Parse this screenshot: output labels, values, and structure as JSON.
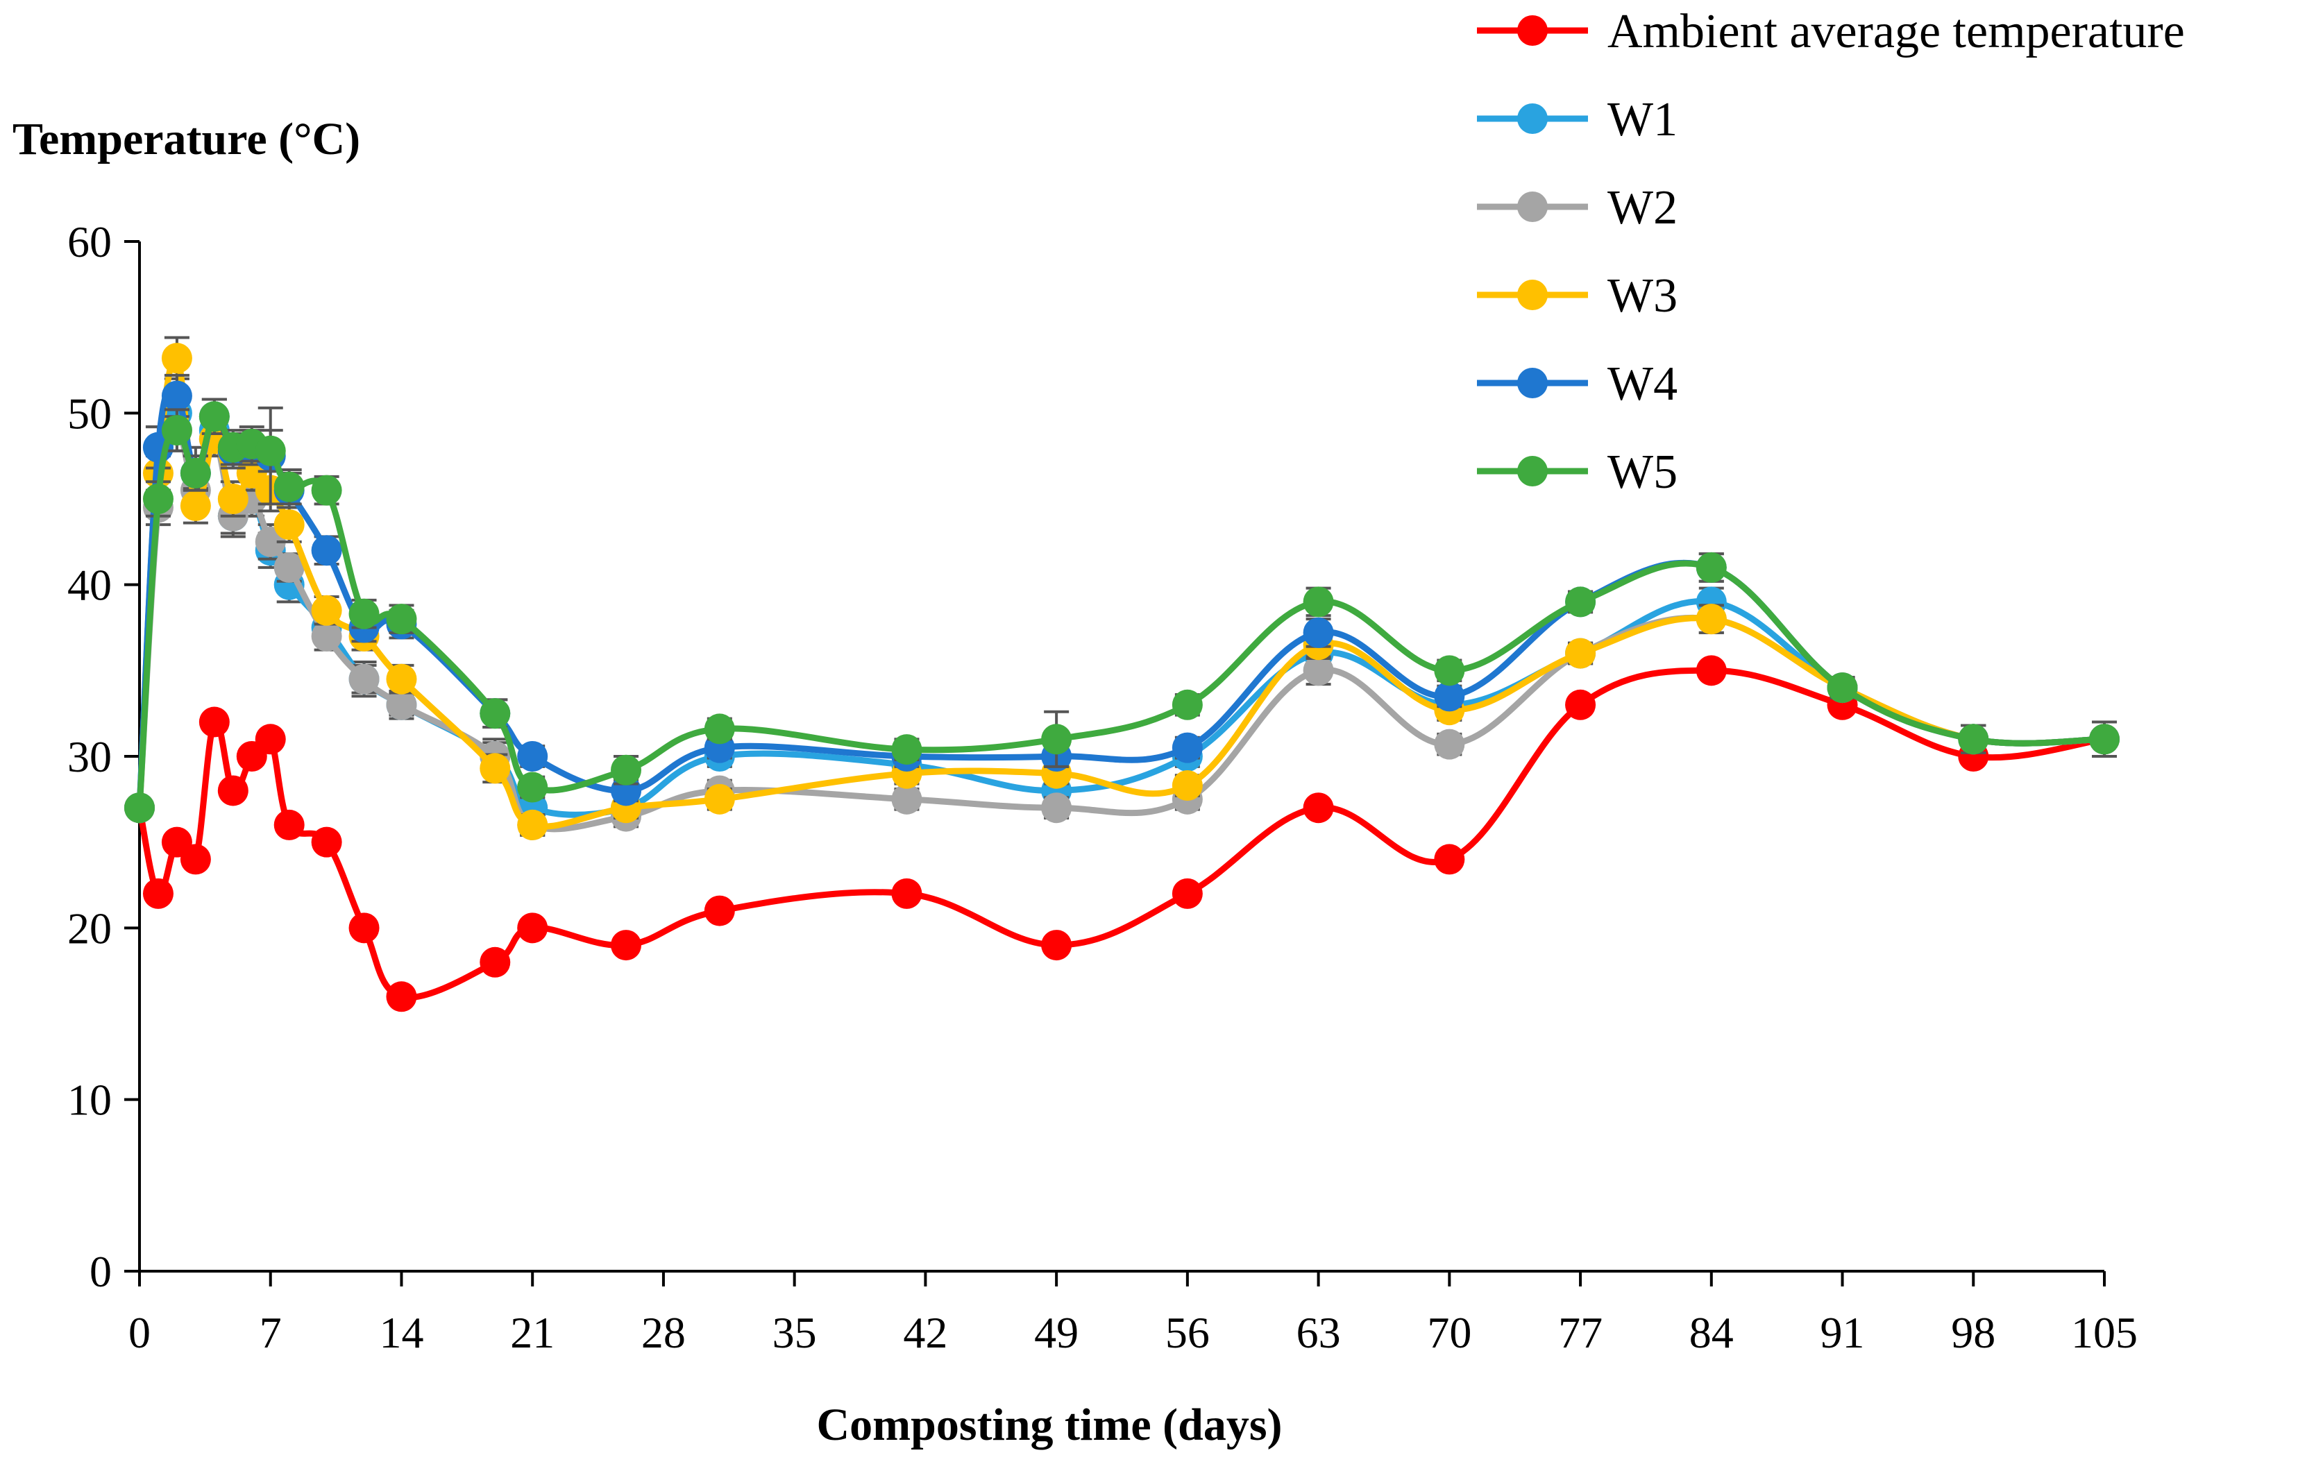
{
  "chart_data": {
    "type": "line",
    "ylabel": "Temperature (°C)",
    "xlabel": "Composting time (days)",
    "xlim": [
      0,
      105
    ],
    "ylim": [
      0,
      60
    ],
    "xticks": [
      0,
      7,
      14,
      21,
      28,
      35,
      42,
      49,
      56,
      63,
      70,
      77,
      84,
      91,
      98,
      105
    ],
    "yticks": [
      0,
      10,
      20,
      30,
      40,
      50,
      60
    ],
    "legend_position": "top-right",
    "series": [
      {
        "name": "Ambient average temperature",
        "color": "#ff0000",
        "points": [
          [
            0,
            27
          ],
          [
            1,
            22
          ],
          [
            2,
            25
          ],
          [
            3,
            24
          ],
          [
            4,
            32
          ],
          [
            5,
            28
          ],
          [
            6,
            30
          ],
          [
            7,
            31
          ],
          [
            8,
            26
          ],
          [
            10,
            25
          ],
          [
            12,
            20
          ],
          [
            14,
            16
          ],
          [
            19,
            18
          ],
          [
            21,
            20
          ],
          [
            26,
            19
          ],
          [
            31,
            21
          ],
          [
            41,
            22
          ],
          [
            49,
            19
          ],
          [
            56,
            22
          ],
          [
            63,
            27
          ],
          [
            70,
            24
          ],
          [
            77,
            33
          ],
          [
            84,
            35
          ],
          [
            91,
            33
          ],
          [
            98,
            30
          ],
          [
            105,
            31
          ]
        ],
        "errors": []
      },
      {
        "name": "W1",
        "color": "#29a3e0",
        "points": [
          [
            0,
            27
          ],
          [
            1,
            48
          ],
          [
            2,
            50
          ],
          [
            3,
            46.5
          ],
          [
            4,
            49
          ],
          [
            5,
            44
          ],
          [
            6,
            45
          ],
          [
            7,
            42
          ],
          [
            8,
            40
          ],
          [
            10,
            37.5
          ],
          [
            12,
            34.5
          ],
          [
            14,
            33
          ],
          [
            19,
            30
          ],
          [
            21,
            27
          ],
          [
            26,
            27
          ],
          [
            31,
            30
          ],
          [
            41,
            29.5
          ],
          [
            49,
            28
          ],
          [
            56,
            30
          ],
          [
            63,
            36
          ],
          [
            70,
            33
          ],
          [
            77,
            36
          ],
          [
            84,
            39
          ],
          [
            91,
            34
          ],
          [
            98,
            31
          ],
          [
            105,
            31
          ]
        ],
        "errors": [
          0,
          1.2,
          1.2,
          1.5,
          1.0,
          1.2,
          1.0,
          1.0,
          1.0,
          0.8,
          1.0,
          0.8,
          1.0,
          0.6,
          0.6,
          0.6,
          0.6,
          0.6,
          0.6,
          0.8,
          0.6,
          0.6,
          0.8,
          0.6,
          0.8,
          1.0
        ]
      },
      {
        "name": "W2",
        "color": "#a5a5a5",
        "points": [
          [
            0,
            27
          ],
          [
            1,
            44.5
          ],
          [
            2,
            49
          ],
          [
            3,
            45.5
          ],
          [
            4,
            48.5
          ],
          [
            5,
            44
          ],
          [
            6,
            45
          ],
          [
            7,
            42.5
          ],
          [
            8,
            41
          ],
          [
            10,
            37
          ],
          [
            12,
            34.5
          ],
          [
            14,
            33
          ],
          [
            19,
            30
          ],
          [
            21,
            26
          ],
          [
            26,
            26.5
          ],
          [
            31,
            28
          ],
          [
            41,
            27.5
          ],
          [
            49,
            27
          ],
          [
            56,
            27.5
          ],
          [
            63,
            35
          ],
          [
            70,
            30.7
          ],
          [
            77,
            36
          ],
          [
            84,
            38
          ],
          [
            91,
            34
          ],
          [
            98,
            31
          ],
          [
            105,
            31
          ]
        ],
        "errors": [
          0,
          1.0,
          1.2,
          1.0,
          1.0,
          1.0,
          1.0,
          1.0,
          0.8,
          0.8,
          0.8,
          0.6,
          0.8,
          0.6,
          0.6,
          0.6,
          0.6,
          0.6,
          0.6,
          0.8,
          0.6,
          0.6,
          0.8,
          0.6,
          0.8,
          1.0
        ]
      },
      {
        "name": "W3",
        "color": "#ffc000",
        "points": [
          [
            0,
            27
          ],
          [
            1,
            46.5
          ],
          [
            2,
            53.2
          ],
          [
            3,
            44.6
          ],
          [
            4,
            48.5
          ],
          [
            5,
            45
          ],
          [
            6,
            46.5
          ],
          [
            7,
            45.5
          ],
          [
            8,
            43.5
          ],
          [
            10,
            38.5
          ],
          [
            12,
            37
          ],
          [
            14,
            34.5
          ],
          [
            19,
            29.3
          ],
          [
            21,
            26
          ],
          [
            26,
            27
          ],
          [
            31,
            27.5
          ],
          [
            41,
            29
          ],
          [
            49,
            29
          ],
          [
            56,
            28.3
          ],
          [
            63,
            36.5
          ],
          [
            70,
            32.7
          ],
          [
            77,
            36
          ],
          [
            84,
            38
          ],
          [
            91,
            34
          ],
          [
            98,
            31
          ],
          [
            105,
            31
          ]
        ],
        "errors": [
          0,
          1.0,
          1.2,
          1.0,
          1.0,
          1.0,
          1.0,
          1.2,
          1.0,
          0.8,
          0.8,
          0.8,
          0.8,
          0.6,
          0.6,
          0.6,
          0.6,
          0.6,
          0.6,
          0.8,
          0.6,
          0.6,
          0.8,
          0.6,
          0.8,
          1.0
        ]
      },
      {
        "name": "W4",
        "color": "#1f77d0",
        "points": [
          [
            0,
            27
          ],
          [
            1,
            48
          ],
          [
            2,
            51
          ],
          [
            3,
            46.5
          ],
          [
            4,
            49.8
          ],
          [
            5,
            47.8
          ],
          [
            6,
            48
          ],
          [
            7,
            47.5
          ],
          [
            8,
            45.5
          ],
          [
            10,
            42
          ],
          [
            12,
            37.5
          ],
          [
            14,
            37.7
          ],
          [
            19,
            32.5
          ],
          [
            21,
            30
          ],
          [
            26,
            28
          ],
          [
            31,
            30.5
          ],
          [
            41,
            30
          ],
          [
            49,
            30
          ],
          [
            56,
            30.5
          ],
          [
            63,
            37.2
          ],
          [
            70,
            33.5
          ],
          [
            77,
            39
          ],
          [
            84,
            41
          ],
          [
            91,
            34
          ],
          [
            98,
            31
          ],
          [
            105,
            31
          ]
        ],
        "errors": [
          0,
          1.2,
          1.2,
          1.0,
          1.0,
          1.0,
          1.0,
          2.8,
          1.0,
          0.8,
          0.8,
          0.8,
          0.8,
          0.6,
          0.6,
          0.6,
          0.6,
          0.6,
          0.6,
          0.8,
          0.6,
          0.6,
          0.8,
          0.6,
          0.8,
          1.0
        ]
      },
      {
        "name": "W5",
        "color": "#3faa3f",
        "points": [
          [
            0,
            27
          ],
          [
            1,
            45
          ],
          [
            2,
            49
          ],
          [
            3,
            46.5
          ],
          [
            4,
            49.8
          ],
          [
            5,
            48
          ],
          [
            6,
            48.2
          ],
          [
            7,
            47.8
          ],
          [
            8,
            45.7
          ],
          [
            10,
            45.5
          ],
          [
            12,
            38.3
          ],
          [
            14,
            38
          ],
          [
            19,
            32.5
          ],
          [
            21,
            28.2
          ],
          [
            26,
            29.2
          ],
          [
            31,
            31.6
          ],
          [
            41,
            30.4
          ],
          [
            49,
            31
          ],
          [
            56,
            33
          ],
          [
            63,
            39
          ],
          [
            70,
            35
          ],
          [
            77,
            39
          ],
          [
            84,
            41
          ],
          [
            91,
            34
          ],
          [
            98,
            31
          ],
          [
            105,
            31
          ]
        ],
        "errors": [
          0,
          1.0,
          1.2,
          1.0,
          1.0,
          1.0,
          1.0,
          1.2,
          1.0,
          0.8,
          0.8,
          0.8,
          0.8,
          0.6,
          0.8,
          0.6,
          0.6,
          1.6,
          0.6,
          0.8,
          0.6,
          0.6,
          0.8,
          0.6,
          0.8,
          1.0
        ]
      }
    ]
  }
}
